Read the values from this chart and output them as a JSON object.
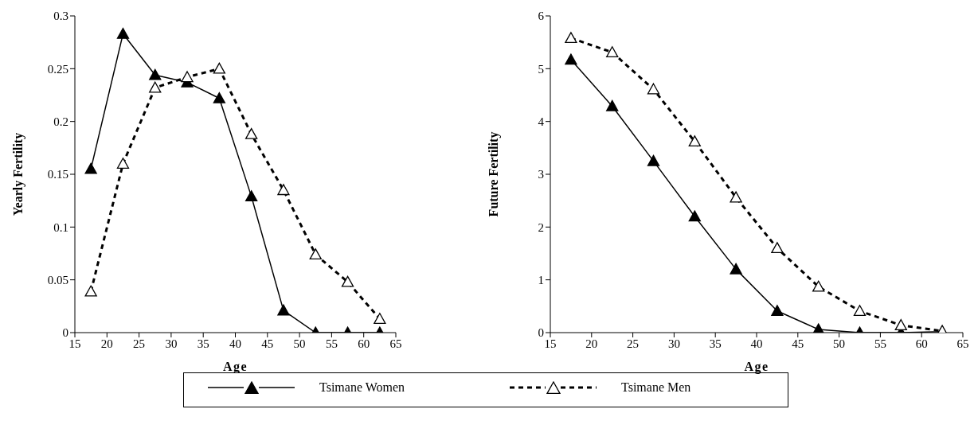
{
  "chart_data": [
    {
      "type": "line",
      "xlabel": "Age",
      "ylabel": "Yearly Fertility",
      "x": [
        17.5,
        22.5,
        27.5,
        32.5,
        37.5,
        42.5,
        47.5,
        52.5,
        57.5,
        62.5
      ],
      "series": [
        {
          "name": "Tsimane Women",
          "color": "#000000",
          "line_style": "solid",
          "values": [
            0.155,
            0.283,
            0.244,
            0.237,
            0.222,
            0.129,
            0.021,
            0,
            0,
            0
          ]
        },
        {
          "name": "Tsimane Men",
          "color": "#000000",
          "line_style": "dashed",
          "values": [
            0.039,
            0.16,
            0.232,
            0.242,
            0.25,
            0.188,
            0.135,
            0.074,
            0.048,
            0.013
          ]
        }
      ],
      "xlim": [
        15,
        65
      ],
      "xticks": [
        15,
        20,
        25,
        30,
        35,
        40,
        45,
        50,
        55,
        60,
        65
      ],
      "ylim": [
        0,
        0.3
      ],
      "yticks": [
        0,
        0.05,
        0.1,
        0.15,
        0.2,
        0.25,
        0.3
      ],
      "marker": "triangle",
      "grid": false,
      "legend": "bottom"
    },
    {
      "type": "line",
      "xlabel": "Age",
      "ylabel": "Future Fertility",
      "x": [
        17.5,
        22.5,
        27.5,
        32.5,
        37.5,
        42.5,
        47.5,
        52.5,
        57.5,
        62.5
      ],
      "series": [
        {
          "color": "#000000",
          "line_style": "solid",
          "values": [
            5.17,
            4.29,
            3.25,
            2.2,
            1.2,
            0.41,
            0.06,
            0,
            0,
            0.02
          ]
        },
        {
          "color": "#000000",
          "line_style": "dashed",
          "values": [
            5.58,
            5.31,
            4.61,
            3.62,
            2.56,
            1.6,
            0.87,
            0.41,
            0.14,
            0.03
          ]
        }
      ],
      "xlim": [
        15,
        65
      ],
      "xticks": [
        15,
        20,
        25,
        30,
        35,
        40,
        45,
        50,
        55,
        60,
        65
      ],
      "ylim": [
        0,
        6
      ],
      "yticks": [
        0,
        1,
        2,
        3,
        4,
        5,
        6
      ],
      "marker": "triangle",
      "grid": false
    }
  ]
}
